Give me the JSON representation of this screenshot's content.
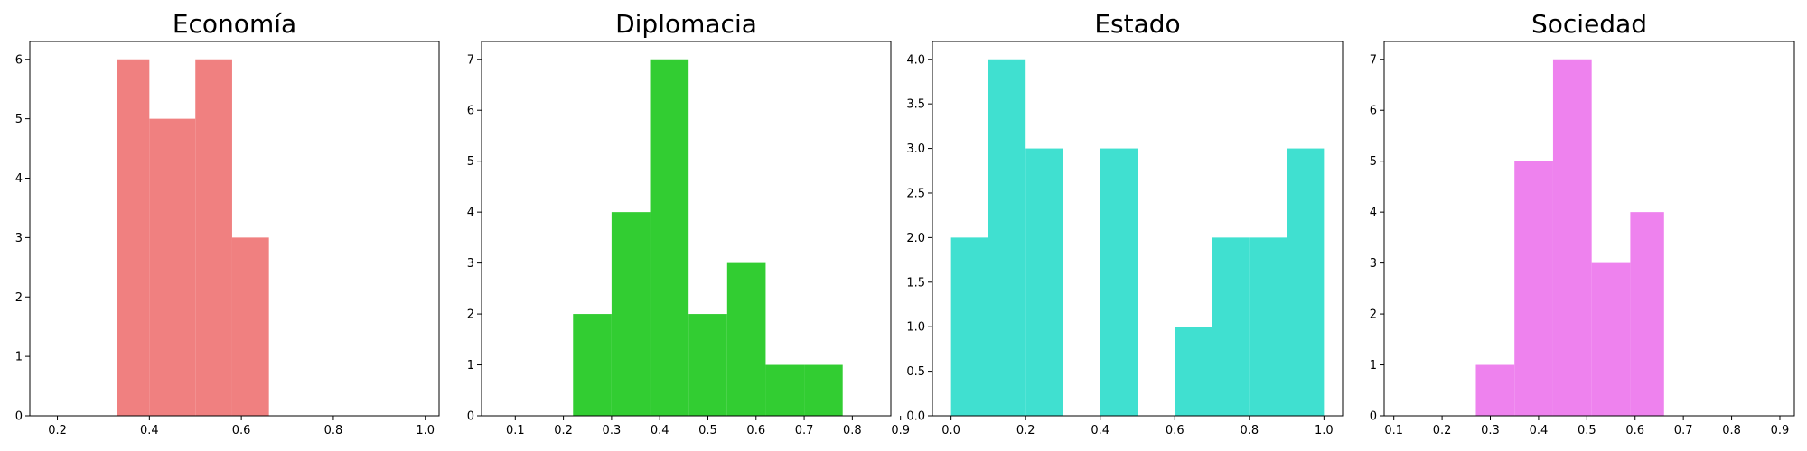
{
  "chart_data": [
    {
      "type": "histogram",
      "title": "Economía",
      "color": "#F08080",
      "xlim": [
        0.14,
        1.03
      ],
      "ylim": [
        0,
        6.3
      ],
      "xticks": [
        0.2,
        0.4,
        0.6,
        0.8,
        1.0
      ],
      "xtick_labels": [
        "0.2",
        "0.4",
        "0.6",
        "0.8",
        "1.0"
      ],
      "yticks": [
        0,
        1,
        2,
        3,
        4,
        5,
        6
      ],
      "ytick_labels": [
        "0",
        "1",
        "2",
        "3",
        "4",
        "5",
        "6"
      ],
      "bins": [
        {
          "x0": 0.33,
          "x1": 0.4,
          "count": 6
        },
        {
          "x0": 0.4,
          "x1": 0.5,
          "count": 5
        },
        {
          "x0": 0.5,
          "x1": 0.58,
          "count": 6
        },
        {
          "x0": 0.58,
          "x1": 0.66,
          "count": 3
        }
      ]
    },
    {
      "type": "histogram",
      "title": "Diplomacia",
      "color": "#32CD32",
      "xlim": [
        0.03,
        0.88
      ],
      "ylim": [
        0,
        7.35
      ],
      "xticks": [
        0.1,
        0.2,
        0.3,
        0.4,
        0.5,
        0.6,
        0.7,
        0.8,
        0.9
      ],
      "xtick_labels": [
        "0.1",
        "0.2",
        "0.3",
        "0.4",
        "0.5",
        "0.6",
        "0.7",
        "0.8",
        "0.9"
      ],
      "yticks": [
        0,
        1,
        2,
        3,
        4,
        5,
        6,
        7
      ],
      "ytick_labels": [
        "0",
        "1",
        "2",
        "3",
        "4",
        "5",
        "6",
        "7"
      ],
      "bins": [
        {
          "x0": 0.22,
          "x1": 0.3,
          "count": 2
        },
        {
          "x0": 0.3,
          "x1": 0.38,
          "count": 4
        },
        {
          "x0": 0.38,
          "x1": 0.46,
          "count": 7
        },
        {
          "x0": 0.46,
          "x1": 0.54,
          "count": 2
        },
        {
          "x0": 0.54,
          "x1": 0.62,
          "count": 3
        },
        {
          "x0": 0.62,
          "x1": 0.7,
          "count": 1
        },
        {
          "x0": 0.7,
          "x1": 0.78,
          "count": 1
        }
      ]
    },
    {
      "type": "histogram",
      "title": "Estado",
      "color": "#40E0D0",
      "xlim": [
        -0.05,
        1.05
      ],
      "ylim": [
        0,
        4.2
      ],
      "xticks": [
        0.0,
        0.2,
        0.4,
        0.6,
        0.8,
        1.0
      ],
      "xtick_labels": [
        "0.0",
        "0.2",
        "0.4",
        "0.6",
        "0.8",
        "1.0"
      ],
      "yticks": [
        0,
        0.5,
        1,
        1.5,
        2,
        2.5,
        3,
        3.5,
        4
      ],
      "ytick_labels": [
        "0.0",
        "0.5",
        "1.0",
        "1.5",
        "2.0",
        "2.5",
        "3.0",
        "3.5",
        "4.0"
      ],
      "bins": [
        {
          "x0": 0.0,
          "x1": 0.1,
          "count": 2
        },
        {
          "x0": 0.1,
          "x1": 0.2,
          "count": 4
        },
        {
          "x0": 0.2,
          "x1": 0.3,
          "count": 3
        },
        {
          "x0": 0.3,
          "x1": 0.4,
          "count": 0
        },
        {
          "x0": 0.4,
          "x1": 0.5,
          "count": 3
        },
        {
          "x0": 0.5,
          "x1": 0.6,
          "count": 0
        },
        {
          "x0": 0.6,
          "x1": 0.7,
          "count": 1
        },
        {
          "x0": 0.7,
          "x1": 0.8,
          "count": 2
        },
        {
          "x0": 0.8,
          "x1": 0.9,
          "count": 2
        },
        {
          "x0": 0.9,
          "x1": 1.0,
          "count": 3
        }
      ]
    },
    {
      "type": "histogram",
      "title": "Sociedad",
      "color": "#EE82EE",
      "xlim": [
        0.08,
        0.93
      ],
      "ylim": [
        0,
        7.35
      ],
      "xticks": [
        0.1,
        0.2,
        0.3,
        0.4,
        0.5,
        0.6,
        0.7,
        0.8,
        0.9
      ],
      "xtick_labels": [
        "0.1",
        "0.2",
        "0.3",
        "0.4",
        "0.5",
        "0.6",
        "0.7",
        "0.8",
        "0.9"
      ],
      "yticks": [
        0,
        1,
        2,
        3,
        4,
        5,
        6,
        7
      ],
      "ytick_labels": [
        "0",
        "1",
        "2",
        "3",
        "4",
        "5",
        "6",
        "7"
      ],
      "bins": [
        {
          "x0": 0.27,
          "x1": 0.35,
          "count": 1
        },
        {
          "x0": 0.35,
          "x1": 0.43,
          "count": 5
        },
        {
          "x0": 0.43,
          "x1": 0.51,
          "count": 7
        },
        {
          "x0": 0.51,
          "x1": 0.59,
          "count": 3
        },
        {
          "x0": 0.59,
          "x1": 0.66,
          "count": 4
        }
      ]
    }
  ]
}
